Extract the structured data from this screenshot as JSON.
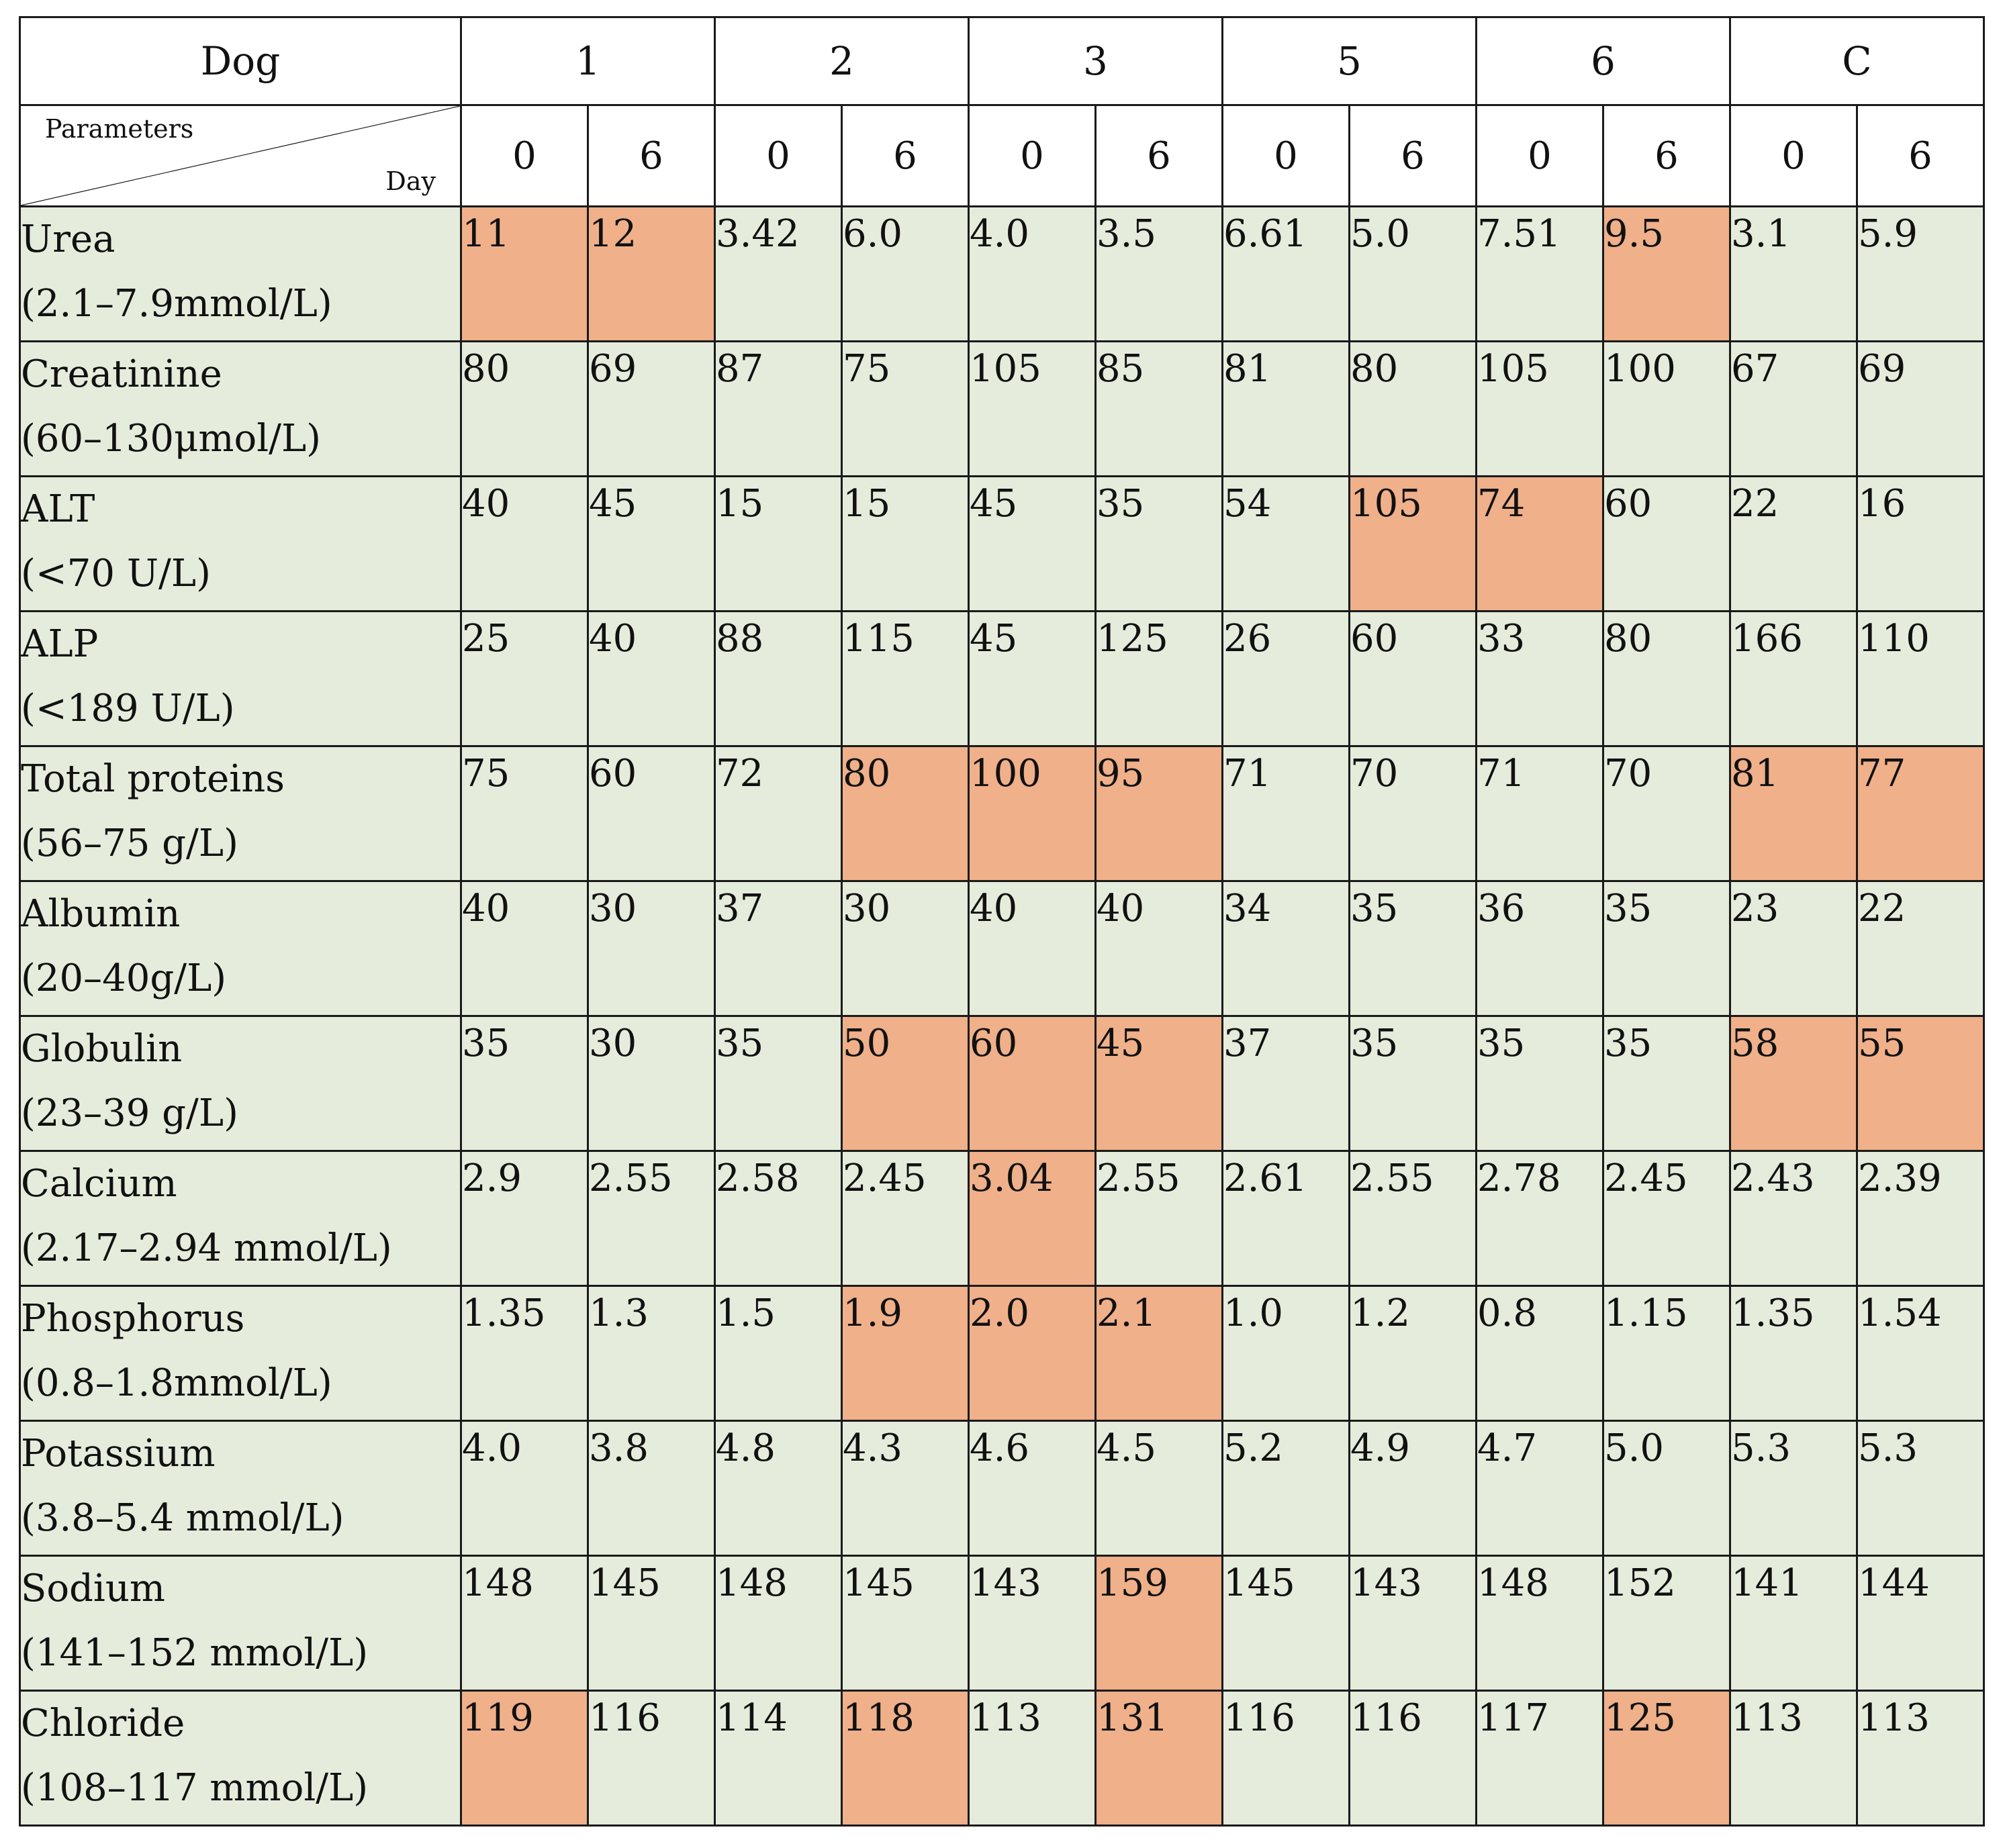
{
  "table": {
    "dog_header_label": "Dog",
    "parameters_label": "Parameters",
    "day_label": "Day",
    "dogs": [
      "1",
      "2",
      "3",
      "5",
      "6",
      "C"
    ],
    "days": [
      "0",
      "6"
    ],
    "colors": {
      "normal": "#e5ecdc",
      "abnormal": "#efb08a",
      "border": "#1a1a1a"
    },
    "rows": [
      {
        "name": "Urea",
        "range": "(2.1–7.9mmol/L)",
        "values": [
          "11",
          "12",
          "3.42",
          "6.0",
          "4.0",
          "3.5",
          "6.61",
          "5.0",
          "7.51",
          "9.5",
          "3.1",
          "5.9"
        ],
        "abnormal": [
          true,
          true,
          false,
          false,
          false,
          false,
          false,
          false,
          false,
          true,
          false,
          false
        ]
      },
      {
        "name": "Creatinine",
        "range": "(60–130μmol/L)",
        "values": [
          "80",
          "69",
          "87",
          "75",
          "105",
          "85",
          "81",
          "80",
          "105",
          "100",
          "67",
          "69"
        ],
        "abnormal": [
          false,
          false,
          false,
          false,
          false,
          false,
          false,
          false,
          false,
          false,
          false,
          false
        ]
      },
      {
        "name": "ALT",
        "range": "(<70 U/L)",
        "values": [
          "40",
          "45",
          "15",
          "15",
          "45",
          "35",
          "54",
          "105",
          "74",
          "60",
          "22",
          "16"
        ],
        "abnormal": [
          false,
          false,
          false,
          false,
          false,
          false,
          false,
          true,
          true,
          false,
          false,
          false
        ]
      },
      {
        "name": "ALP",
        "range": "(<189 U/L)",
        "values": [
          "25",
          "40",
          "88",
          "115",
          "45",
          "125",
          "26",
          "60",
          "33",
          "80",
          "166",
          "110"
        ],
        "abnormal": [
          false,
          false,
          false,
          false,
          false,
          false,
          false,
          false,
          false,
          false,
          false,
          false
        ]
      },
      {
        "name": "Total proteins",
        "range": "(56–75 g/L)",
        "values": [
          "75",
          "60",
          "72",
          "80",
          "100",
          "95",
          "71",
          "70",
          "71",
          "70",
          "81",
          "77"
        ],
        "abnormal": [
          false,
          false,
          false,
          true,
          true,
          true,
          false,
          false,
          false,
          false,
          true,
          true
        ]
      },
      {
        "name": "Albumin",
        "range": "(20–40g/L)",
        "values": [
          "40",
          "30",
          "37",
          "30",
          "40",
          "40",
          "34",
          "35",
          "36",
          "35",
          "23",
          "22"
        ],
        "abnormal": [
          false,
          false,
          false,
          false,
          false,
          false,
          false,
          false,
          false,
          false,
          false,
          false
        ]
      },
      {
        "name": "Globulin",
        "range": "(23–39 g/L)",
        "values": [
          "35",
          "30",
          "35",
          "50",
          "60",
          "45",
          "37",
          "35",
          "35",
          "35",
          "58",
          "55"
        ],
        "abnormal": [
          false,
          false,
          false,
          true,
          true,
          true,
          false,
          false,
          false,
          false,
          true,
          true
        ]
      },
      {
        "name": "Calcium",
        "range": "(2.17–2.94 mmol/L)",
        "values": [
          "2.9",
          "2.55",
          "2.58",
          "2.45",
          "3.04",
          "2.55",
          "2.61",
          "2.55",
          "2.78",
          "2.45",
          "2.43",
          "2.39"
        ],
        "abnormal": [
          false,
          false,
          false,
          false,
          true,
          false,
          false,
          false,
          false,
          false,
          false,
          false
        ]
      },
      {
        "name": "Phosphorus",
        "range": "(0.8–1.8mmol/L)",
        "values": [
          "1.35",
          "1.3",
          "1.5",
          "1.9",
          "2.0",
          "2.1",
          "1.0",
          "1.2",
          "0.8",
          "1.15",
          "1.35",
          "1.54"
        ],
        "abnormal": [
          false,
          false,
          false,
          true,
          true,
          true,
          false,
          false,
          false,
          false,
          false,
          false
        ]
      },
      {
        "name": "Potassium",
        "range": "(3.8–5.4 mmol/L)",
        "values": [
          "4.0",
          "3.8",
          "4.8",
          "4.3",
          "4.6",
          "4.5",
          "5.2",
          "4.9",
          "4.7",
          "5.0",
          "5.3",
          "5.3"
        ],
        "abnormal": [
          false,
          false,
          false,
          false,
          false,
          false,
          false,
          false,
          false,
          false,
          false,
          false
        ]
      },
      {
        "name": "Sodium",
        "range": "(141–152 mmol/L)",
        "values": [
          "148",
          "145",
          "148",
          "145",
          "143",
          "159",
          "145",
          "143",
          "148",
          "152",
          "141",
          "144"
        ],
        "abnormal": [
          false,
          false,
          false,
          false,
          false,
          true,
          false,
          false,
          false,
          false,
          false,
          false
        ]
      },
      {
        "name": "Chloride",
        "range": "(108–117 mmol/L)",
        "values": [
          "119",
          "116",
          "114",
          "118",
          "113",
          "131",
          "116",
          "116",
          "117",
          "125",
          "113",
          "113"
        ],
        "abnormal": [
          true,
          false,
          false,
          true,
          false,
          true,
          false,
          false,
          false,
          true,
          false,
          false
        ]
      }
    ]
  }
}
